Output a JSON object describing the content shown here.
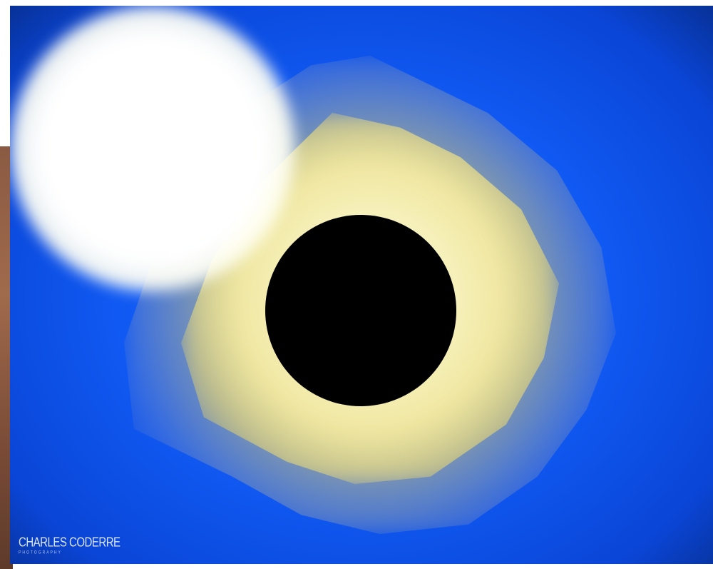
{
  "photo": {
    "subject": "total-solar-eclipse",
    "colors": {
      "sky": "#1059f2",
      "sky_edge": "#06246e",
      "corona_gold": "#e6d27a",
      "corona_core": "#ffffff",
      "moon": "#000000",
      "side_strip": "#8a5a42"
    }
  },
  "watermark": {
    "text": "CHARLES CODERRE",
    "subtext": "PHOTOGRAPHY"
  }
}
